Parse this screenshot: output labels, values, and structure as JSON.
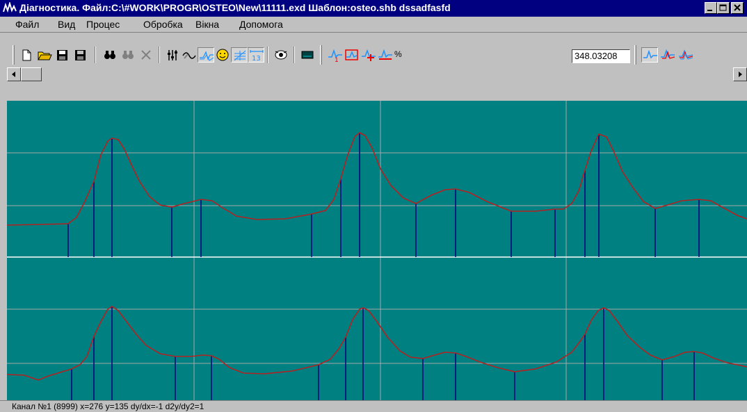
{
  "window": {
    "title": "Діагностика. Файл:C:\\#WORK\\PROGR\\OSTEO\\New\\11111.exd Шаблон:osteo.shb  dssadfasfd"
  },
  "menu": {
    "items": [
      "Файл",
      "Вид",
      "Процес",
      "Обробка",
      "Вікна",
      "Допомога"
    ]
  },
  "toolbar": {
    "percent_value": "348.03208",
    "percent_symbol": "%"
  },
  "status": {
    "text": "Канал №1 (8999) x=276 y=135   dy/dx=-1  d2y/dy2=1"
  },
  "colors": {
    "plot_bg": "#008080",
    "curve": "#b22222",
    "markers": "#000080",
    "grid": "#a9a9a9"
  }
}
